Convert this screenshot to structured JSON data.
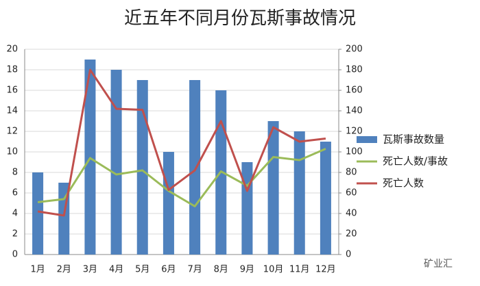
{
  "chart_data": {
    "type": "bar",
    "title": "近五年不同月份瓦斯事故情况",
    "categories": [
      "1月",
      "2月",
      "3月",
      "4月",
      "5月",
      "6月",
      "7月",
      "8月",
      "9月",
      "10月",
      "11月",
      "12月"
    ],
    "series": [
      {
        "name": "瓦斯事故数量",
        "type": "bar",
        "color": "#4f81bd",
        "values": [
          8,
          7,
          19,
          18,
          17,
          10,
          17,
          16,
          9,
          13,
          12,
          11
        ]
      },
      {
        "name": "死亡人数/事故",
        "type": "line",
        "color": "#9bbb59",
        "values": [
          5.1,
          5.4,
          9.4,
          7.8,
          8.2,
          6.2,
          4.7,
          8.1,
          6.7,
          9.5,
          9.2,
          10.3
        ]
      },
      {
        "name": "死亡人数",
        "type": "line",
        "axis": "y2",
        "color": "#c0504d",
        "values": [
          42,
          38,
          180,
          142,
          141,
          63,
          82,
          130,
          62,
          124,
          110,
          113
        ]
      }
    ],
    "ylim": [
      0,
      20
    ],
    "yticks": [
      0,
      2,
      4,
      6,
      8,
      10,
      12,
      14,
      16,
      18,
      20
    ],
    "y2lim": [
      0,
      200
    ],
    "y2ticks": [
      0,
      20,
      40,
      60,
      80,
      100,
      120,
      140,
      160,
      180,
      200
    ],
    "grid": true,
    "legend": "right",
    "watermark": "矿业汇"
  }
}
